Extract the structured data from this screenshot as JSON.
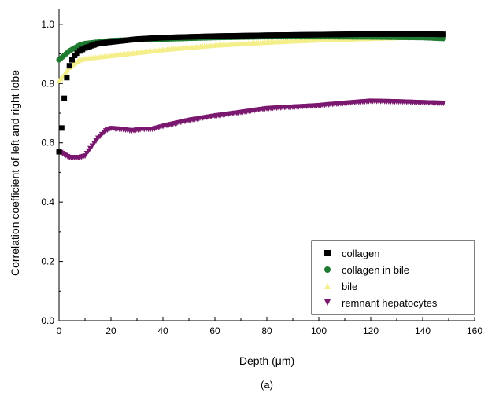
{
  "chart_data": {
    "type": "scatter",
    "title": "",
    "xlabel": "Depth (μm)",
    "ylabel": "Correlation coefficient of left and right lobe",
    "caption": "(a)",
    "xlim": [
      0,
      160
    ],
    "ylim": [
      0.0,
      1.05
    ],
    "x_ticks": [
      0,
      20,
      40,
      60,
      80,
      100,
      120,
      140,
      160
    ],
    "y_ticks": [
      0.0,
      0.2,
      0.4,
      0.6,
      0.8,
      1.0
    ],
    "y_tick_labels": [
      "0.0",
      "0.2",
      "0.4",
      "0.6",
      "0.8",
      "1.0"
    ],
    "grid": false,
    "legend_position": "bottom-right",
    "series": [
      {
        "name": "collagen",
        "marker": "square",
        "color": "#000000",
        "x": [
          0,
          1,
          2,
          3,
          4,
          5,
          6,
          8,
          10,
          15,
          20,
          30,
          40,
          60,
          80,
          100,
          120,
          140,
          148
        ],
        "y": [
          0.57,
          0.65,
          0.75,
          0.82,
          0.86,
          0.88,
          0.895,
          0.91,
          0.92,
          0.935,
          0.94,
          0.95,
          0.955,
          0.96,
          0.963,
          0.965,
          0.967,
          0.967,
          0.966
        ]
      },
      {
        "name": "collagen in bile",
        "marker": "circle",
        "color": "#1e7b2f",
        "x": [
          0,
          2,
          4,
          6,
          8,
          10,
          15,
          20,
          30,
          40,
          60,
          80,
          100,
          120,
          140,
          148
        ],
        "y": [
          0.88,
          0.895,
          0.91,
          0.92,
          0.93,
          0.935,
          0.94,
          0.945,
          0.948,
          0.95,
          0.955,
          0.958,
          0.958,
          0.957,
          0.955,
          0.952
        ]
      },
      {
        "name": "bile",
        "marker": "triangle-up",
        "color": "#f4ef8a",
        "x": [
          0,
          2,
          4,
          6,
          8,
          10,
          15,
          20,
          30,
          40,
          60,
          80,
          100,
          120,
          140,
          148
        ],
        "y": [
          0.81,
          0.83,
          0.855,
          0.87,
          0.88,
          0.885,
          0.89,
          0.895,
          0.905,
          0.915,
          0.93,
          0.94,
          0.948,
          0.953,
          0.958,
          0.96
        ]
      },
      {
        "name": "remnant hepatocytes",
        "marker": "triangle-down",
        "color": "#7a176f",
        "x": [
          0,
          2,
          4,
          6,
          8,
          10,
          12,
          15,
          18,
          20,
          24,
          28,
          32,
          36,
          40,
          50,
          60,
          70,
          80,
          90,
          100,
          110,
          120,
          130,
          140,
          148
        ],
        "y": [
          0.57,
          0.56,
          0.55,
          0.55,
          0.55,
          0.555,
          0.58,
          0.615,
          0.64,
          0.648,
          0.645,
          0.64,
          0.645,
          0.645,
          0.655,
          0.675,
          0.69,
          0.702,
          0.715,
          0.72,
          0.725,
          0.733,
          0.74,
          0.738,
          0.735,
          0.733
        ]
      }
    ]
  }
}
